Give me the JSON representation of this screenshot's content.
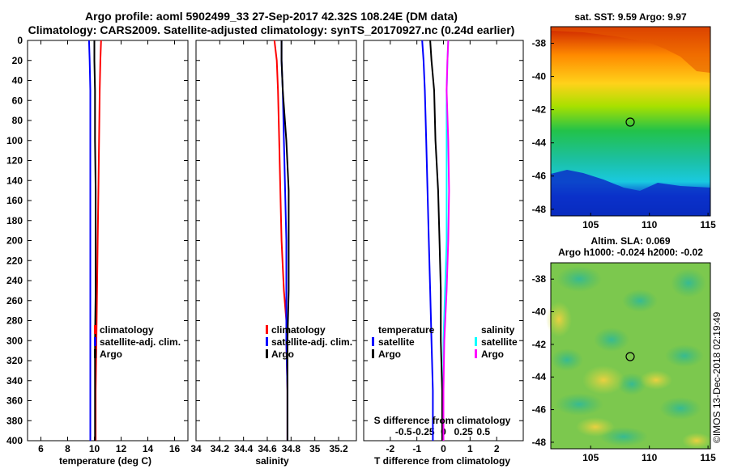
{
  "header": {
    "line1": "Argo profile: aoml 5902499_33 27-Sep-2017 42.32S 108.24E (DM data)",
    "line2": "Climatology: CARS2009. Satellite-adjusted climatology: synTS_20170927.nc (0.24d earlier)"
  },
  "colors": {
    "climatology": "#ff0000",
    "satellite": "#0000ff",
    "argo": "#000000",
    "sat_salinity": "#00ffff",
    "argo_salinity": "#ff00ff"
  },
  "chart_data": [
    {
      "type": "line",
      "id": "temperature",
      "xlabel": "temperature (deg C)",
      "xlim": [
        5,
        17
      ],
      "xticks": [
        6,
        8,
        10,
        12,
        14,
        16
      ],
      "ylim": [
        0,
        400
      ],
      "yticks": [
        0,
        20,
        40,
        60,
        80,
        100,
        120,
        140,
        160,
        180,
        200,
        220,
        240,
        260,
        280,
        300,
        320,
        340,
        360,
        380,
        400
      ],
      "legend": [
        "climatology",
        "satellite-adj. clim.",
        "Argo"
      ],
      "series": [
        {
          "name": "climatology",
          "depth": [
            0,
            20,
            50,
            100,
            150,
            200,
            250,
            300,
            350,
            400
          ],
          "values": [
            10.5,
            10.45,
            10.4,
            10.35,
            10.3,
            10.25,
            10.2,
            10.15,
            10.1,
            10.1
          ]
        },
        {
          "name": "satellite-adj. clim.",
          "depth": [
            0,
            20,
            50,
            100,
            150,
            200,
            250,
            300,
            350,
            400
          ],
          "values": [
            9.6,
            9.65,
            9.7,
            9.7,
            9.7,
            9.7,
            9.7,
            9.7,
            9.7,
            9.7
          ]
        },
        {
          "name": "Argo",
          "depth": [
            0,
            20,
            50,
            100,
            150,
            200,
            250,
            300,
            350,
            400
          ],
          "values": [
            10.0,
            10.0,
            10.05,
            10.05,
            10.1,
            10.1,
            10.1,
            10.05,
            10.05,
            10.05
          ]
        }
      ]
    },
    {
      "type": "line",
      "id": "salinity",
      "xlabel": "salinity",
      "xlim": [
        34.0,
        35.35
      ],
      "xticks": [
        34,
        34.2,
        34.4,
        34.6,
        34.8,
        35,
        35.2
      ],
      "xticklabels": [
        "34",
        "34.2",
        "34.4",
        "34.6",
        "34.8",
        "35",
        "35.2"
      ],
      "ylim": [
        0,
        400
      ],
      "legend": [
        "climatology",
        "satellite-adj. clim.",
        "Argo"
      ],
      "series": [
        {
          "name": "climatology",
          "depth": [
            0,
            20,
            50,
            100,
            150,
            200,
            250,
            280,
            300,
            350,
            400
          ],
          "values": [
            34.66,
            34.68,
            34.69,
            34.7,
            34.71,
            34.72,
            34.74,
            34.76,
            34.76,
            34.77,
            34.77
          ]
        },
        {
          "name": "satellite-adj. clim.",
          "depth": [
            0,
            20,
            50,
            100,
            150,
            200,
            250,
            300,
            350,
            400
          ],
          "values": [
            34.72,
            34.72,
            34.73,
            34.74,
            34.75,
            34.76,
            34.76,
            34.76,
            34.77,
            34.77
          ]
        },
        {
          "name": "Argo",
          "depth": [
            0,
            20,
            50,
            100,
            150,
            200,
            250,
            300,
            350,
            400
          ],
          "values": [
            34.72,
            34.72,
            34.73,
            34.76,
            34.78,
            34.78,
            34.78,
            34.77,
            34.77,
            34.77
          ]
        }
      ]
    },
    {
      "type": "line",
      "id": "difference",
      "xlabel": "T difference from climatology",
      "xlim": [
        -3,
        3
      ],
      "xticks": [
        -2,
        -1,
        0,
        1,
        2
      ],
      "top_axis_label": "S difference from climatology",
      "top_ticks": [
        -0.5,
        -0.25,
        0,
        0.25,
        0.5
      ],
      "top_ticklabels": [
        "-0.5",
        "-0.25",
        "0",
        "0.25",
        "0.5"
      ],
      "ylim": [
        0,
        400
      ],
      "legend_temperature_heading": "temperature",
      "legend_salinity_heading": "salinity",
      "legend_temperature": [
        "satellite",
        "Argo"
      ],
      "legend_salinity": [
        "satellite",
        "Argo"
      ],
      "series": [
        {
          "name": "T satellite",
          "depth": [
            0,
            20,
            50,
            100,
            150,
            200,
            250,
            300,
            350,
            400
          ],
          "values": [
            -0.8,
            -0.75,
            -0.7,
            -0.65,
            -0.6,
            -0.55,
            -0.5,
            -0.45,
            -0.4,
            -0.4
          ]
        },
        {
          "name": "T Argo",
          "depth": [
            0,
            20,
            50,
            100,
            150,
            200,
            250,
            300,
            350,
            400
          ],
          "values": [
            -0.5,
            -0.45,
            -0.35,
            -0.3,
            -0.2,
            -0.15,
            -0.1,
            -0.1,
            -0.05,
            -0.05
          ]
        },
        {
          "name": "S satellite",
          "depth": [
            0,
            20,
            50,
            100,
            150,
            200,
            250,
            300,
            350,
            400
          ],
          "values": [
            0.06,
            0.05,
            0.04,
            0.04,
            0.04,
            0.04,
            0.02,
            0.0,
            0.0,
            0.0
          ]
        },
        {
          "name": "S Argo",
          "depth": [
            0,
            20,
            50,
            100,
            150,
            200,
            250,
            300,
            350,
            400
          ],
          "values": [
            0.06,
            0.05,
            0.04,
            0.06,
            0.07,
            0.06,
            0.04,
            0.01,
            0.0,
            0.0
          ]
        }
      ]
    }
  ],
  "maps": {
    "sst": {
      "title": "sat. SST: 9.59 Argo: 9.97",
      "lat_ticks": [
        "-38",
        "-40",
        "-42",
        "-44",
        "-46",
        "-48"
      ],
      "lon_ticks": [
        "105",
        "110",
        "115"
      ]
    },
    "sla": {
      "title1": "Altim. SLA: 0.069",
      "title2": "Argo h1000: -0.024 h2000: -0.02",
      "lat_ticks": [
        "-38",
        "-40",
        "-42",
        "-44",
        "-46",
        "-48"
      ],
      "lon_ticks": [
        "105",
        "110",
        "115"
      ]
    }
  },
  "credit": "©IMOS 13-Dec-2018 02:19:49"
}
